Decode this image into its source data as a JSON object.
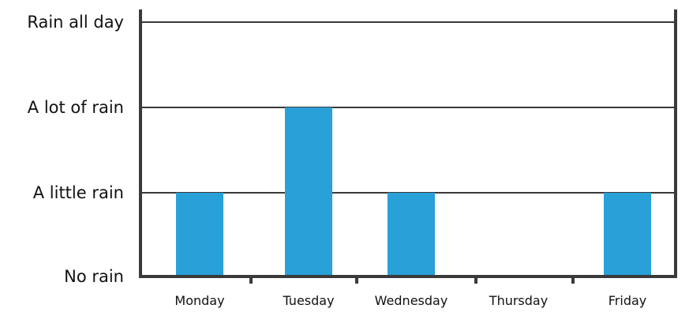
{
  "chart_data": {
    "type": "bar",
    "categories": [
      "Monday",
      "Tuesday",
      "Wednesday",
      "Thursday",
      "Friday"
    ],
    "levels": [
      "No rain",
      "A little rain",
      "A lot of rain",
      "Rain all day"
    ],
    "values": [
      "A little rain",
      "A lot of rain",
      "A little rain",
      "No rain",
      "A little rain"
    ],
    "ylim": [
      "No rain",
      "Rain all day"
    ],
    "grid": true,
    "bar_color": "#29a0d8",
    "axis_color": "#3a3a3a"
  }
}
